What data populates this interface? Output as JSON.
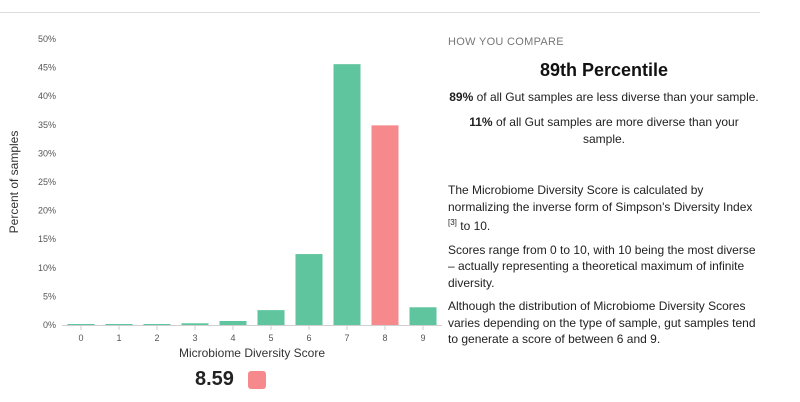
{
  "chart_data": {
    "type": "bar",
    "xlabel": "Microbiome Diversity Score",
    "ylabel": "Percent of samples",
    "ylim": [
      0,
      50
    ],
    "yticks": [
      "0%",
      "5%",
      "10%",
      "15%",
      "20%",
      "25%",
      "30%",
      "35%",
      "40%",
      "45%",
      "50%"
    ],
    "categories": [
      "0",
      "1",
      "2",
      "3",
      "4",
      "5",
      "6",
      "7",
      "8",
      "9"
    ],
    "values": [
      0.1,
      0.1,
      0.15,
      0.3,
      0.7,
      2.6,
      12.4,
      45.6,
      34.9,
      3.1
    ],
    "highlight_index": 8,
    "grid": false
  },
  "colors": {
    "bar": "#5fc59e",
    "highlight": "#f5898c",
    "axis": "#cfcfcf"
  },
  "score": {
    "value": "8.59"
  },
  "panel": {
    "heading": "HOW YOU COMPARE",
    "percentile": "89th Percentile",
    "less_pct": "89%",
    "less_text": " of all Gut samples are less diverse than your sample.",
    "more_pct": "11%",
    "more_text": " of all Gut samples are more diverse than your sample.",
    "desc_text": "The Microbiome Diversity Score is calculated by normalizing the inverse form of Simpson's Diversity Index ",
    "desc_ref": "[3]",
    "desc_tail": " to 10.",
    "range_text": "Scores range from 0 to 10, with 10 being the most diverse – actually representing a theoretical maximum of infinite diversity.",
    "dist_text": "Although the distribution of Microbiome Diversity Scores varies depending on the type of sample, gut samples tend to generate a score of between 6 and 9."
  }
}
